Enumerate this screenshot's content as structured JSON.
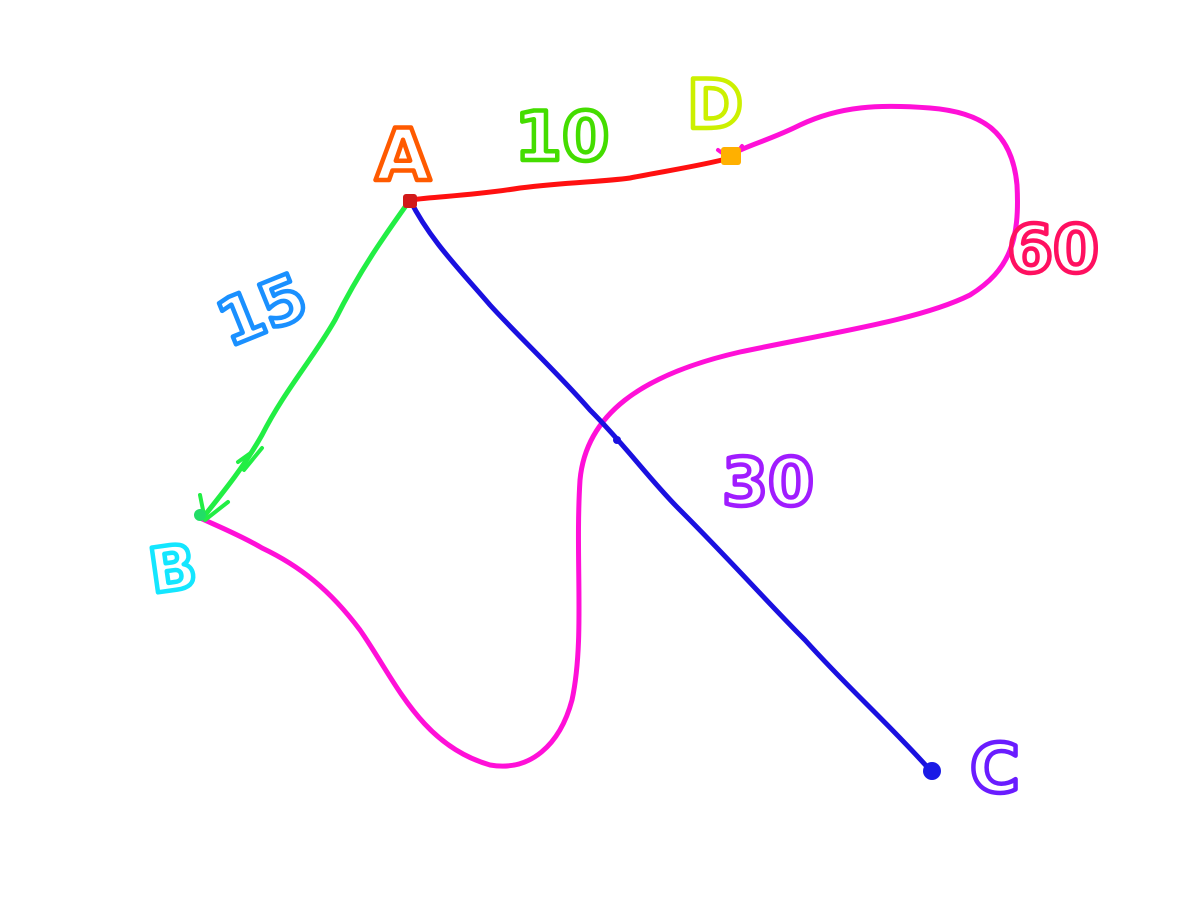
{
  "graph": {
    "nodes": [
      {
        "id": "A",
        "label": "A",
        "label_color": "#ff5a00",
        "marker_color": "#d11a1a"
      },
      {
        "id": "B",
        "label": "B",
        "label_color": "#14e6ff",
        "marker_color": "#22dd66"
      },
      {
        "id": "C",
        "label": "C",
        "label_color": "#6a1cff",
        "marker_color": "#1a1ae6"
      },
      {
        "id": "D",
        "label": "D",
        "label_color": "#ccf000",
        "marker_color": "#ffb000"
      }
    ],
    "edges": [
      {
        "from": "A",
        "to": "D",
        "weight": "10",
        "color": "#ff1010",
        "weight_color": "#44dd00"
      },
      {
        "from": "A",
        "to": "B",
        "weight": "15",
        "color": "#22ee44",
        "weight_color": "#1a90ff"
      },
      {
        "from": "A",
        "to": "C",
        "weight": "30",
        "color": "#1a10e0",
        "weight_color": "#a01cff"
      },
      {
        "from": "B",
        "to": "D",
        "weight": "60",
        "color": "#ff10d8",
        "weight_color": "#ff1060"
      }
    ]
  }
}
